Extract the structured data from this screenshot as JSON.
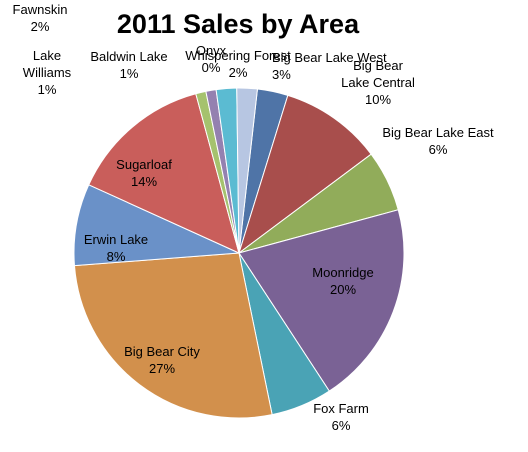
{
  "chart_data": {
    "type": "pie",
    "title": "2011 Sales by Area",
    "slices": [
      {
        "name": "Big Bear Lake West",
        "value": 3,
        "label": "3%",
        "color": "#4F74A7"
      },
      {
        "name": "Big Bear Lake Central",
        "value": 10,
        "label": "10%",
        "color": "#A84E4C"
      },
      {
        "name": "Big Bear Lake East",
        "value": 6,
        "label": "6%",
        "color": "#91AC5A"
      },
      {
        "name": "Moonridge",
        "value": 20,
        "label": "20%",
        "color": "#7A6295"
      },
      {
        "name": "Fox Farm",
        "value": 6,
        "label": "6%",
        "color": "#4AA3B5"
      },
      {
        "name": "Big Bear City",
        "value": 27,
        "label": "27%",
        "color": "#D2904C"
      },
      {
        "name": "Erwin Lake",
        "value": 8,
        "label": "8%",
        "color": "#6A91C8"
      },
      {
        "name": "Sugarloaf",
        "value": 14,
        "label": "14%",
        "color": "#C95E5B"
      },
      {
        "name": "Lake Williams",
        "value": 1,
        "label": "1%",
        "color": "#A5C26E"
      },
      {
        "name": "Baldwin Lake",
        "value": 1,
        "label": "1%",
        "color": "#9481B0"
      },
      {
        "name": "Fawnskin",
        "value": 2,
        "label": "2%",
        "color": "#5BBBD2"
      },
      {
        "name": "Whispering Forest",
        "value": 2,
        "label": "2%",
        "color": "#B7C6E2"
      },
      {
        "name": "Onyx",
        "value": 0,
        "label": "0%",
        "color": "#E0A6A4"
      }
    ]
  }
}
